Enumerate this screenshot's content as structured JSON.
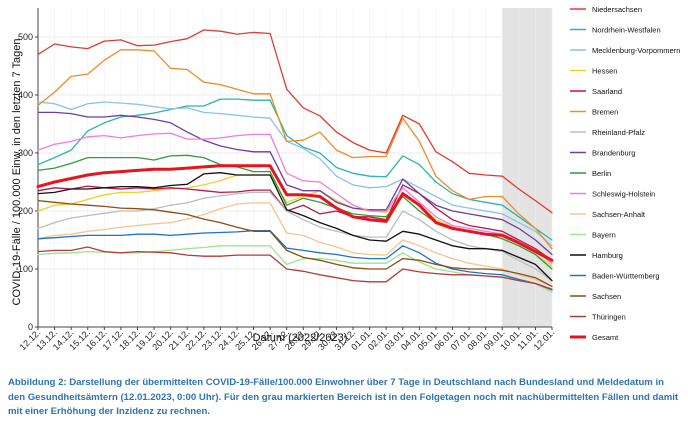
{
  "caption": "Abbildung 2: Darstellung der übermittelten COVID-19-Fälle/100.000 Einwohner über 7 Tage in Deutschland nach Bundesland und Meldedatum in den Gesundheitsämtern (12.01.2023, 0:00 Uhr). Für den grau markierten Bereich ist in den Folgetagen noch mit nachübermittelten Fällen und damit mit einer Erhöhung der Inzidenz zu rechnen.",
  "chart_data": {
    "type": "line",
    "xlabel": "Datum (2022/2023)",
    "ylabel": "COVID-19-Fälle / 100.000 Einw. in den letzten 7 Tagen",
    "ylim": [
      0,
      550
    ],
    "yticks": [
      0,
      100,
      200,
      300,
      400,
      500
    ],
    "grid": true,
    "legend_position": "right",
    "shaded_region": {
      "from": "09.01.",
      "to": "12.01.",
      "color": "#e3e3e3"
    },
    "x": [
      "12.12.",
      "13.12.",
      "14.12.",
      "15.12.",
      "16.12.",
      "17.12.",
      "18.12.",
      "19.12.",
      "20.12.",
      "21.12.",
      "22.12.",
      "23.12.",
      "24.12.",
      "25.12.",
      "26.12.",
      "27.12.",
      "28.12.",
      "29.12.",
      "30.12.",
      "31.12.",
      "01.01.",
      "02.01.",
      "03.01.",
      "04.01.",
      "05.01.",
      "06.01.",
      "07.01.",
      "08.01.",
      "09.01.",
      "10.01.",
      "11.01.",
      "12.01."
    ],
    "series": [
      {
        "name": "Niedersachsen",
        "color": "#e03c31",
        "width": 1.3,
        "values": [
          470,
          488,
          483,
          480,
          493,
          495,
          485,
          486,
          492,
          497,
          512,
          510,
          505,
          508,
          506,
          410,
          378,
          364,
          336,
          318,
          305,
          300,
          365,
          350,
          302,
          285,
          265,
          262,
          260,
          238,
          218,
          197
        ]
      },
      {
        "name": "Nordrhein-Westfalen",
        "color": "#2cb5a8",
        "width": 1.3,
        "values": [
          280,
          292,
          305,
          338,
          352,
          362,
          365,
          369,
          375,
          381,
          381,
          393,
          393,
          391,
          391,
          330,
          310,
          300,
          275,
          265,
          260,
          259,
          295,
          280,
          250,
          230,
          220,
          215,
          210,
          190,
          170,
          150
        ]
      },
      {
        "name": "Mecklenburg-Vorpommern",
        "color": "#8cc1e8",
        "width": 1.3,
        "values": [
          388,
          385,
          375,
          385,
          388,
          386,
          384,
          380,
          376,
          378,
          370,
          368,
          365,
          362,
          360,
          320,
          308,
          290,
          260,
          245,
          240,
          242,
          255,
          240,
          225,
          210,
          205,
          200,
          195,
          180,
          165,
          140
        ]
      },
      {
        "name": "Hessen",
        "color": "#f2d022",
        "width": 1.3,
        "values": [
          200,
          210,
          212,
          220,
          228,
          232,
          232,
          235,
          238,
          240,
          245,
          252,
          262,
          262,
          262,
          215,
          225,
          235,
          218,
          205,
          200,
          198,
          230,
          210,
          185,
          172,
          165,
          160,
          152,
          140,
          125,
          105
        ]
      },
      {
        "name": "Saarland",
        "color": "#b5174e",
        "width": 1.3,
        "values": [
          235,
          240,
          238,
          243,
          240,
          238,
          240,
          238,
          240,
          238,
          235,
          232,
          233,
          236,
          236,
          200,
          210,
          195,
          200,
          190,
          190,
          185,
          245,
          230,
          205,
          185,
          175,
          170,
          165,
          150,
          135,
          115
        ]
      },
      {
        "name": "Bremen",
        "color": "#ef8c2a",
        "width": 1.3,
        "values": [
          382,
          405,
          432,
          436,
          460,
          478,
          478,
          476,
          446,
          444,
          422,
          418,
          410,
          402,
          402,
          320,
          322,
          336,
          305,
          292,
          294,
          294,
          360,
          320,
          260,
          235,
          220,
          225,
          225,
          195,
          170,
          135
        ]
      },
      {
        "name": "Rheinland-Pfalz",
        "color": "#bdbdbd",
        "width": 1.3,
        "values": [
          170,
          180,
          188,
          192,
          196,
          200,
          200,
          204,
          210,
          214,
          222,
          226,
          230,
          232,
          232,
          200,
          185,
          172,
          165,
          158,
          155,
          155,
          200,
          185,
          165,
          150,
          140,
          135,
          130,
          115,
          100,
          80
        ]
      },
      {
        "name": "Brandenburg",
        "color": "#6b3fa0",
        "width": 1.3,
        "values": [
          370,
          370,
          368,
          362,
          362,
          365,
          362,
          358,
          352,
          336,
          322,
          312,
          306,
          302,
          302,
          245,
          235,
          235,
          215,
          205,
          202,
          202,
          255,
          230,
          210,
          200,
          195,
          190,
          185,
          170,
          150,
          125
        ]
      },
      {
        "name": "Berlin",
        "color": "#2e9e3b",
        "width": 1.3,
        "values": [
          270,
          274,
          282,
          292,
          292,
          292,
          292,
          288,
          295,
          296,
          292,
          280,
          276,
          268,
          268,
          210,
          222,
          215,
          205,
          195,
          192,
          190,
          225,
          200,
          180,
          170,
          165,
          160,
          152,
          140,
          125,
          100
        ]
      },
      {
        "name": "Schleswig-Holstein",
        "color": "#f07ce2",
        "width": 1.3,
        "values": [
          305,
          315,
          320,
          328,
          330,
          326,
          330,
          333,
          334,
          324,
          324,
          326,
          330,
          332,
          332,
          265,
          252,
          250,
          230,
          210,
          200,
          200,
          240,
          215,
          190,
          175,
          170,
          165,
          160,
          148,
          132,
          110
        ]
      },
      {
        "name": "Sachsen-Anhalt",
        "color": "#f5c68e",
        "width": 1.3,
        "values": [
          152,
          158,
          160,
          165,
          168,
          172,
          175,
          178,
          180,
          186,
          194,
          204,
          212,
          214,
          214,
          162,
          158,
          146,
          138,
          128,
          125,
          124,
          150,
          140,
          128,
          118,
          110,
          105,
          100,
          90,
          82,
          70
        ]
      },
      {
        "name": "Bayern",
        "color": "#9ee393",
        "width": 1.3,
        "values": [
          125,
          127,
          128,
          130,
          129,
          128,
          128,
          130,
          132,
          135,
          137,
          140,
          140,
          140,
          140,
          108,
          118,
          118,
          115,
          110,
          110,
          110,
          128,
          112,
          100,
          95,
          90,
          88,
          85,
          80,
          75,
          60
        ]
      },
      {
        "name": "Hamburg",
        "color": "#111111",
        "width": 1.3,
        "values": [
          230,
          232,
          238,
          238,
          240,
          242,
          242,
          240,
          244,
          246,
          264,
          266,
          262,
          262,
          262,
          202,
          192,
          180,
          170,
          158,
          150,
          148,
          165,
          160,
          150,
          140,
          135,
          135,
          132,
          120,
          108,
          80
        ]
      },
      {
        "name": "Baden-Württemberg",
        "color": "#1f73c7",
        "width": 1.3,
        "values": [
          152,
          154,
          156,
          158,
          158,
          158,
          160,
          160,
          158,
          160,
          162,
          163,
          164,
          166,
          166,
          136,
          132,
          128,
          125,
          120,
          118,
          118,
          140,
          128,
          110,
          100,
          95,
          92,
          90,
          82,
          75,
          64
        ]
      },
      {
        "name": "Sachsen",
        "color": "#8a4d12",
        "width": 1.3,
        "values": [
          218,
          215,
          212,
          210,
          208,
          205,
          204,
          202,
          198,
          194,
          186,
          180,
          172,
          165,
          165,
          132,
          120,
          115,
          108,
          102,
          100,
          100,
          118,
          115,
          108,
          102,
          100,
          100,
          98,
          92,
          85,
          70
        ]
      },
      {
        "name": "Thüringen",
        "color": "#b03c3c",
        "width": 1.3,
        "values": [
          130,
          132,
          132,
          138,
          130,
          128,
          130,
          129,
          128,
          124,
          122,
          122,
          124,
          124,
          124,
          100,
          96,
          90,
          85,
          80,
          78,
          78,
          100,
          95,
          92,
          90,
          90,
          88,
          86,
          80,
          75,
          65
        ]
      },
      {
        "name": "Gesamt",
        "color": "#e8141c",
        "width": 3,
        "values": [
          242,
          250,
          256,
          262,
          266,
          268,
          270,
          272,
          272,
          274,
          276,
          278,
          278,
          278,
          278,
          228,
          228,
          225,
          205,
          190,
          185,
          182,
          230,
          210,
          180,
          170,
          165,
          160,
          158,
          145,
          130,
          115
        ]
      }
    ]
  }
}
